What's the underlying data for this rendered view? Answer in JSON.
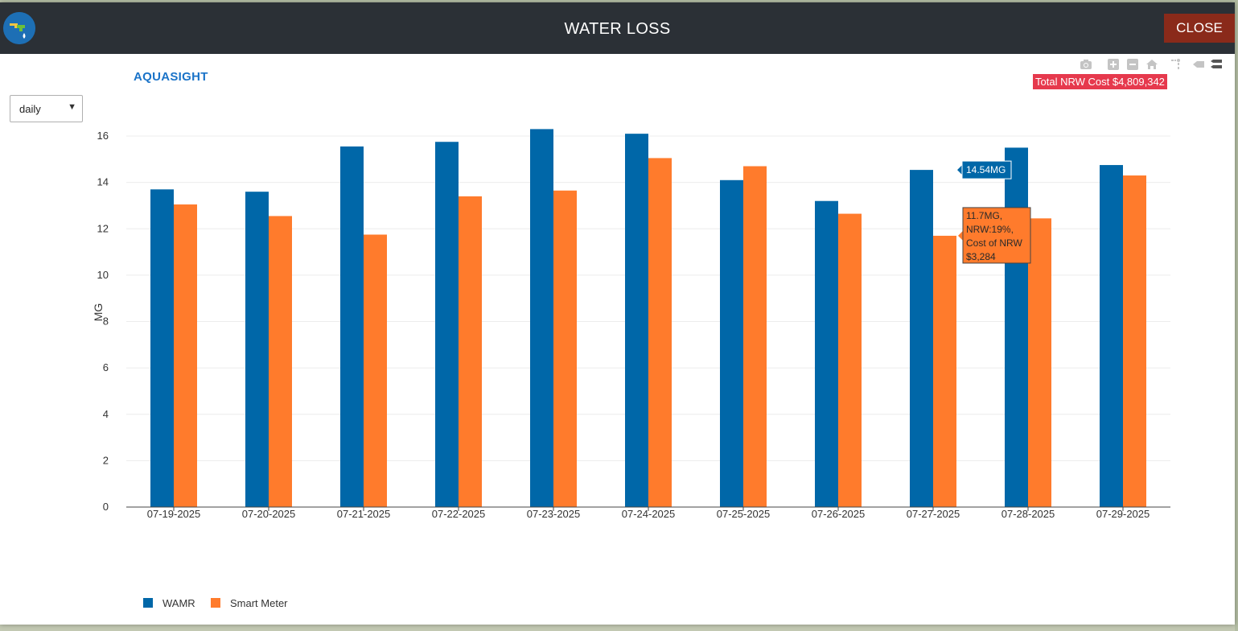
{
  "modal": {
    "title": "WATER LOSS",
    "close_label": "CLOSE"
  },
  "brand": "AQUASIGHT",
  "period_select": {
    "value": "daily"
  },
  "toolbar": {
    "icons": [
      "camera-icon",
      "zoom-in-icon",
      "zoom-out-icon",
      "home-icon",
      "spike-lines-icon",
      "hover-closest-icon",
      "hover-compare-icon"
    ]
  },
  "nrw_badge": "Total NRW Cost $4,809,342",
  "colors": {
    "wamr": "#0067a8",
    "smart_meter": "#ff7b2c",
    "header": "#2b3036",
    "close": "#8a2a1a",
    "badge": "#e6394d"
  },
  "chart_data": {
    "type": "bar",
    "categories": [
      "07-19-2025",
      "07-20-2025",
      "07-21-2025",
      "07-22-2025",
      "07-23-2025",
      "07-24-2025",
      "07-25-2025",
      "07-26-2025",
      "07-27-2025",
      "07-28-2025",
      "07-29-2025"
    ],
    "series": [
      {
        "name": "WAMR",
        "color": "#0067a8",
        "values": [
          13.7,
          13.6,
          15.55,
          15.75,
          16.3,
          16.1,
          14.1,
          13.2,
          14.54,
          15.5,
          14.75
        ]
      },
      {
        "name": "Smart Meter",
        "color": "#ff7b2c",
        "values": [
          13.05,
          12.55,
          11.75,
          13.4,
          13.65,
          15.05,
          14.7,
          12.65,
          11.7,
          12.45,
          14.3
        ]
      }
    ],
    "ylabel": "MG",
    "ylim": [
      0,
      16.8
    ],
    "yticks": [
      0,
      2,
      4,
      6,
      8,
      10,
      12,
      14,
      16
    ],
    "grid": true,
    "legend_position": "bottom-left",
    "hover": {
      "category": "07-27-2025",
      "wamr_label": "14.54MG",
      "smart_meter_lines": [
        "11.7MG,",
        "NRW:19%,",
        "Cost of NRW",
        "$3,284"
      ]
    }
  }
}
